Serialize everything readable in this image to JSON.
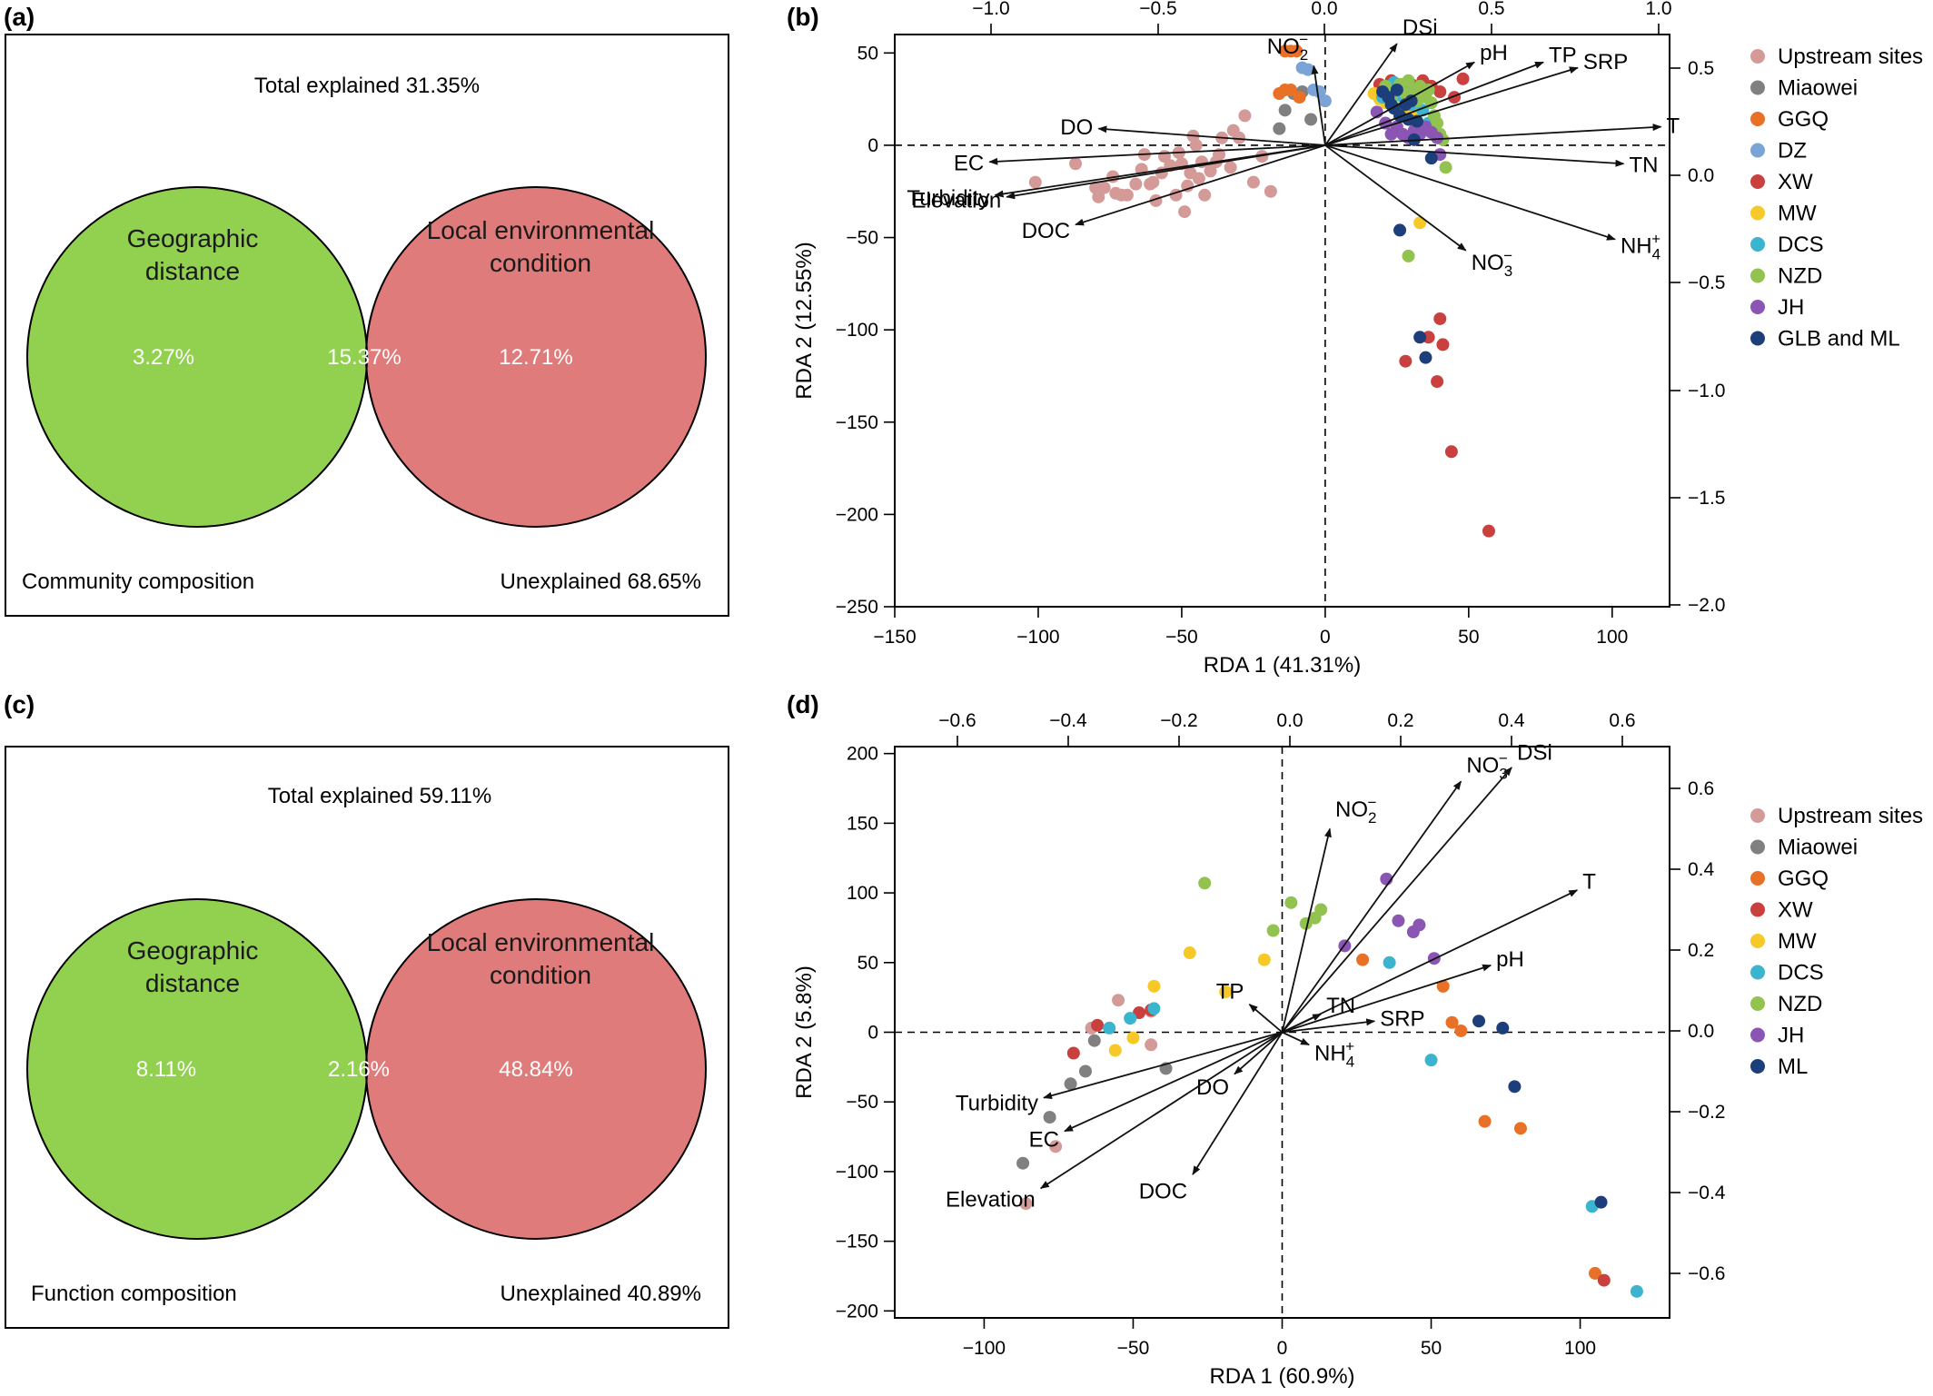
{
  "venn_panels": [
    {
      "label": "(a)",
      "total": "Total explained 31.35%",
      "left_title": [
        "Geographic",
        "distance"
      ],
      "right_title": [
        "Local environmental",
        "condition"
      ],
      "left_value": "3.27%",
      "overlap_value": "15.37%",
      "right_value": "12.71%",
      "footer_left": "Community composition",
      "footer_right": "Unexplained 68.65%",
      "colors": {
        "left": "#92d050",
        "right": "#e07b7b",
        "overlap": "#a5652a"
      }
    },
    {
      "label": "(c)",
      "total": "Total explained 59.11%",
      "left_title": [
        "Geographic",
        "distance"
      ],
      "right_title": [
        "Local environmental",
        "condition"
      ],
      "left_value": "8.11%",
      "overlap_value": "2.16%",
      "right_value": "48.84%",
      "footer_left": "Function composition",
      "footer_right": "Unexplained 40.89%",
      "colors": {
        "left": "#92d050",
        "right": "#e07b7b",
        "overlap": "#a5652a"
      }
    }
  ],
  "site_colors": {
    "Upstream sites": "#d49a98",
    "Miaowei": "#808080",
    "GGQ": "#e87127",
    "DZ": "#7aa3d6",
    "XW": "#c9403e",
    "MW": "#f6c928",
    "DCS": "#3bb4cf",
    "NZD": "#92c24f",
    "JH": "#8a55b3",
    "GLB and ML": "#1c3f7c",
    "ML": "#1c3f7c"
  },
  "chart_data": [
    {
      "type": "scatter",
      "panel_label": "(b)",
      "xlabel": "RDA 1 (41.31%)",
      "ylabel": "RDA 2 (12.55%)",
      "xlim": [
        -150,
        120
      ],
      "ylim": [
        -250,
        60
      ],
      "x_ticks": [
        -150,
        -100,
        -50,
        0,
        50,
        100
      ],
      "y_ticks": [
        50,
        0,
        -50,
        -100,
        -150,
        -200,
        -250
      ],
      "top_ticks": [
        "-1.0",
        "-0.5",
        "0.0",
        "0.5",
        "1.0"
      ],
      "right_ticks": [
        "0.5",
        "0.0",
        "-0.5",
        "-1.0",
        "-1.5",
        "-2.0"
      ],
      "legend_position": "right",
      "legend": [
        "Upstream sites",
        "Miaowei",
        "GGQ",
        "DZ",
        "XW",
        "MW",
        "DCS",
        "NZD",
        "JH",
        "GLB and ML"
      ],
      "arrows": [
        {
          "label": "DSi",
          "x": 25,
          "y": 55
        },
        {
          "label": "NO2-",
          "x": -4,
          "y": 43
        },
        {
          "label": "pH",
          "x": 52,
          "y": 45
        },
        {
          "label": "TP",
          "x": 76,
          "y": 45
        },
        {
          "label": "SRP",
          "x": 88,
          "y": 42
        },
        {
          "label": "T",
          "x": 117,
          "y": 10
        },
        {
          "label": "TN",
          "x": 104,
          "y": -10
        },
        {
          "label": "NH4+",
          "x": 101,
          "y": -51
        },
        {
          "label": "NO3-",
          "x": 49,
          "y": -57
        },
        {
          "label": "DO",
          "x": -79,
          "y": 9
        },
        {
          "label": "EC",
          "x": -117,
          "y": -9
        },
        {
          "label": "Turbidity",
          "x": -115,
          "y": -27
        },
        {
          "label": "Elevation",
          "x": -111,
          "y": -28
        },
        {
          "label": "DOC",
          "x": -87,
          "y": -43
        }
      ],
      "series": [
        {
          "name": "Upstream sites",
          "points": [
            [
              -101,
              -20
            ],
            [
              -87,
              -10
            ],
            [
              -80,
              -23
            ],
            [
              -79,
              -28
            ],
            [
              -77,
              -23
            ],
            [
              -74,
              -17
            ],
            [
              -73,
              -26
            ],
            [
              -71,
              -27
            ],
            [
              -69,
              -27
            ],
            [
              -66,
              -21
            ],
            [
              -64,
              -13
            ],
            [
              -63,
              -5
            ],
            [
              -61,
              -21
            ],
            [
              -60,
              -20
            ],
            [
              -59,
              -30
            ],
            [
              -57,
              -15
            ],
            [
              -56,
              -6
            ],
            [
              -54,
              -11
            ],
            [
              -52,
              -27
            ],
            [
              -51,
              -4
            ],
            [
              -50,
              -10
            ],
            [
              -49,
              -36
            ],
            [
              -48,
              -22
            ],
            [
              -47,
              -15
            ],
            [
              -46,
              5
            ],
            [
              -45,
              0
            ],
            [
              -44,
              -18
            ],
            [
              -43,
              -9
            ],
            [
              -42,
              -27
            ],
            [
              -40,
              -14
            ],
            [
              -38,
              -9
            ],
            [
              -37,
              -5
            ],
            [
              -36,
              4
            ],
            [
              -33,
              -12
            ],
            [
              -32,
              8
            ],
            [
              -30,
              4
            ],
            [
              -28,
              16
            ],
            [
              -25,
              -20
            ],
            [
              -22,
              -6
            ],
            [
              -19,
              -25
            ]
          ]
        },
        {
          "name": "Miaowei",
          "points": [
            [
              -16,
              9
            ],
            [
              -14,
              19
            ],
            [
              -11,
              28
            ],
            [
              -8,
              29
            ],
            [
              -5,
              14
            ]
          ]
        },
        {
          "name": "GGQ",
          "points": [
            [
              -16,
              28
            ],
            [
              -14,
              30
            ],
            [
              -12,
              30
            ],
            [
              -9,
              26
            ],
            [
              -14,
              51
            ],
            [
              -12,
              51
            ],
            [
              -10,
              51
            ]
          ]
        },
        {
          "name": "DZ",
          "points": [
            [
              -8,
              42
            ],
            [
              -6,
              41
            ],
            [
              -4,
              30
            ],
            [
              -2,
              29
            ],
            [
              0,
              24
            ]
          ]
        },
        {
          "name": "XW",
          "points": [
            [
              19,
              33
            ],
            [
              23,
              35
            ],
            [
              30,
              33
            ],
            [
              34,
              35
            ],
            [
              37,
              32
            ],
            [
              38,
              10
            ],
            [
              40,
              29
            ],
            [
              45,
              26
            ],
            [
              48,
              36
            ],
            [
              28,
              -117
            ],
            [
              36,
              -104
            ],
            [
              39,
              -128
            ],
            [
              40,
              -94
            ],
            [
              41,
              -108
            ],
            [
              44,
              -166
            ],
            [
              57,
              -209
            ]
          ]
        },
        {
          "name": "MW",
          "points": [
            [
              17,
              28
            ],
            [
              19,
              25
            ],
            [
              21,
              23
            ],
            [
              23,
              28
            ],
            [
              25,
              30
            ],
            [
              27,
              33
            ],
            [
              28,
              20
            ],
            [
              29,
              14
            ],
            [
              31,
              18
            ],
            [
              33,
              -42
            ]
          ]
        },
        {
          "name": "DCS",
          "points": [
            [
              20,
              26
            ],
            [
              22,
              30
            ],
            [
              24,
              34
            ],
            [
              26,
              27
            ],
            [
              28,
              31
            ],
            [
              30,
              22
            ],
            [
              32,
              24
            ],
            [
              34,
              19
            ],
            [
              36,
              12
            ]
          ]
        },
        {
          "name": "NZD",
          "points": [
            [
              21,
              32
            ],
            [
              23,
              25
            ],
            [
              25,
              20
            ],
            [
              26,
              33
            ],
            [
              28,
              28
            ],
            [
              29,
              35
            ],
            [
              31,
              30
            ],
            [
              32,
              24
            ],
            [
              33,
              32
            ],
            [
              34,
              28
            ],
            [
              35,
              26
            ],
            [
              36,
              30
            ],
            [
              37,
              23
            ],
            [
              38,
              16
            ],
            [
              39,
              12
            ],
            [
              40,
              6
            ],
            [
              41,
              3
            ],
            [
              42,
              -12
            ],
            [
              29,
              -60
            ]
          ]
        },
        {
          "name": "JH",
          "points": [
            [
              18,
              18
            ],
            [
              21,
              12
            ],
            [
              23,
              6
            ],
            [
              25,
              10
            ],
            [
              27,
              6
            ],
            [
              29,
              4
            ],
            [
              31,
              8
            ],
            [
              33,
              6
            ],
            [
              35,
              10
            ],
            [
              37,
              7
            ],
            [
              39,
              4
            ],
            [
              40,
              -5
            ]
          ]
        },
        {
          "name": "GLB and ML",
          "points": [
            [
              20,
              29
            ],
            [
              22,
              26
            ],
            [
              23,
              22
            ],
            [
              24,
              20
            ],
            [
              25,
              30
            ],
            [
              26,
              16
            ],
            [
              28,
              22
            ],
            [
              29,
              14
            ],
            [
              30,
              24
            ],
            [
              31,
              3
            ],
            [
              32,
              13
            ],
            [
              26,
              -46
            ],
            [
              33,
              -104
            ],
            [
              35,
              -115
            ],
            [
              37,
              -7
            ]
          ]
        }
      ]
    },
    {
      "type": "scatter",
      "panel_label": "(d)",
      "xlabel": "RDA 1 (60.9%)",
      "ylabel": "RDA 2 (5.8%)",
      "xlim": [
        -130,
        130
      ],
      "ylim": [
        -205,
        205
      ],
      "x_ticks": [
        -100,
        -50,
        0,
        50,
        100
      ],
      "y_ticks": [
        200,
        150,
        100,
        50,
        0,
        -50,
        -100,
        -150,
        -200
      ],
      "top_ticks": [
        "-0.6",
        "-0.4",
        "-0.2",
        "0.0",
        "0.2",
        "0.4",
        "0.6"
      ],
      "right_ticks": [
        "0.6",
        "0.4",
        "0.2",
        "0.0",
        "-0.2",
        "-0.4",
        "-0.6"
      ],
      "legend_position": "right",
      "legend": [
        "Upstream sites",
        "Miaowei",
        "GGQ",
        "XW",
        "MW",
        "DCS",
        "NZD",
        "JH",
        "ML"
      ],
      "arrows": [
        {
          "label": "NO3-",
          "x": 60,
          "y": 180
        },
        {
          "label": "DSi",
          "x": 77,
          "y": 190
        },
        {
          "label": "NO2-",
          "x": 16,
          "y": 146
        },
        {
          "label": "T",
          "x": 99,
          "y": 102
        },
        {
          "label": "pH",
          "x": 70,
          "y": 48
        },
        {
          "label": "TN",
          "x": 13,
          "y": 13
        },
        {
          "label": "SRP",
          "x": 31,
          "y": 8
        },
        {
          "label": "TP",
          "x": -11,
          "y": 20
        },
        {
          "label": "NH4+",
          "x": 9,
          "y": -9
        },
        {
          "label": "DO",
          "x": -16,
          "y": -30
        },
        {
          "label": "DOC",
          "x": -30,
          "y": -102
        },
        {
          "label": "Turbidity",
          "x": -80,
          "y": -47
        },
        {
          "label": "EC",
          "x": -73,
          "y": -71
        },
        {
          "label": "Elevation",
          "x": -81,
          "y": -112
        }
      ],
      "series": [
        {
          "name": "Upstream sites",
          "points": [
            [
              -86,
              -123
            ],
            [
              -76,
              -82
            ],
            [
              -64,
              3
            ],
            [
              -55,
              23
            ],
            [
              -44,
              -9
            ],
            [
              -44,
              15
            ]
          ]
        },
        {
          "name": "Miaowei",
          "points": [
            [
              -87,
              -94
            ],
            [
              -78,
              -61
            ],
            [
              -71,
              -37
            ],
            [
              -66,
              -28
            ],
            [
              -63,
              -6
            ],
            [
              -39,
              -26
            ]
          ]
        },
        {
          "name": "GGQ",
          "points": [
            [
              27,
              52
            ],
            [
              54,
              33
            ],
            [
              57,
              7
            ],
            [
              60,
              1
            ],
            [
              68,
              -64
            ],
            [
              80,
              -69
            ],
            [
              105,
              -173
            ]
          ]
        },
        {
          "name": "XW",
          "points": [
            [
              -70,
              -15
            ],
            [
              -62,
              5
            ],
            [
              -48,
              14
            ],
            [
              -44,
              16
            ],
            [
              108,
              -178
            ]
          ]
        },
        {
          "name": "MW",
          "points": [
            [
              -56,
              -13
            ],
            [
              -50,
              -4
            ],
            [
              -43,
              33
            ],
            [
              -31,
              57
            ],
            [
              -19,
              29
            ],
            [
              -6,
              52
            ]
          ]
        },
        {
          "name": "DCS",
          "points": [
            [
              -58,
              3
            ],
            [
              -51,
              10
            ],
            [
              -43,
              17
            ],
            [
              36,
              50
            ],
            [
              50,
              -20
            ],
            [
              104,
              -125
            ],
            [
              119,
              -186
            ]
          ]
        },
        {
          "name": "NZD",
          "points": [
            [
              -26,
              107
            ],
            [
              -3,
              73
            ],
            [
              3,
              93
            ],
            [
              8,
              78
            ],
            [
              11,
              82
            ],
            [
              13,
              88
            ]
          ]
        },
        {
          "name": "JH",
          "points": [
            [
              21,
              62
            ],
            [
              35,
              110
            ],
            [
              39,
              80
            ],
            [
              44,
              72
            ],
            [
              46,
              77
            ],
            [
              51,
              53
            ]
          ]
        },
        {
          "name": "ML",
          "points": [
            [
              66,
              8
            ],
            [
              74,
              3
            ],
            [
              78,
              -39
            ],
            [
              107,
              -122
            ]
          ]
        }
      ]
    }
  ]
}
